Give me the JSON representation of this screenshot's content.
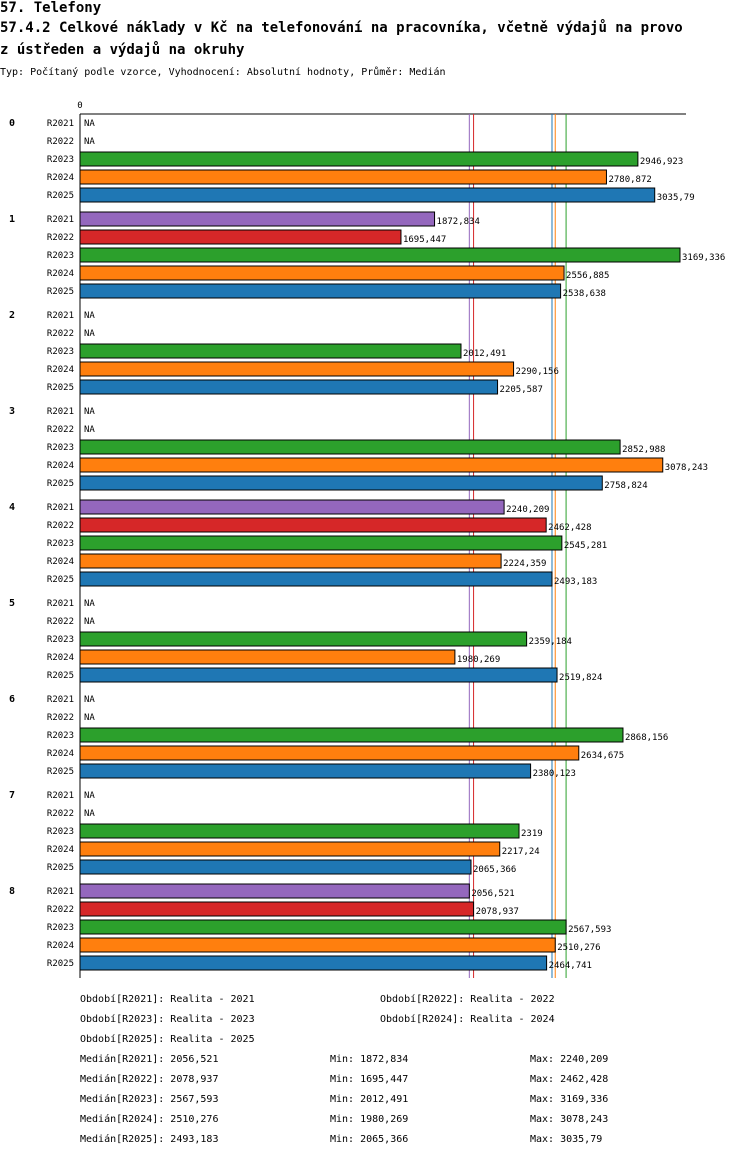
{
  "header": {
    "title": "57. Telefony",
    "subtitle_line1": "57.4.2 Celkové náklady v Kč na telefonování na pracovníka, včetně výdajů na provo",
    "subtitle_line2": "z ústředen a výdajů na okruhy",
    "meta": "Typ: Počítaný podle vzorce, Vyhodnocení: Absolutní hodnoty, Průměr: Medián"
  },
  "chart_data": {
    "type": "bar",
    "orientation": "horizontal",
    "axis_zero_label": "0",
    "xlim": [
      0,
      3169.336
    ],
    "na_label": "NA",
    "series": [
      {
        "name": "R2021",
        "color": "#9467bd"
      },
      {
        "name": "R2022",
        "color": "#d62728"
      },
      {
        "name": "R2023",
        "color": "#2ca02c"
      },
      {
        "name": "R2024",
        "color": "#ff7f0e"
      },
      {
        "name": "R2025",
        "color": "#1f77b4"
      }
    ],
    "groups": [
      {
        "label": "0",
        "values": [
          null,
          null,
          2946.923,
          2780.872,
          3035.79
        ],
        "labels": [
          "NA",
          "NA",
          "2946,923",
          "2780,872",
          "3035,79"
        ]
      },
      {
        "label": "1",
        "values": [
          1872.834,
          1695.447,
          3169.336,
          2556.885,
          2538.638
        ],
        "labels": [
          "1872,834",
          "1695,447",
          "3169,336",
          "2556,885",
          "2538,638"
        ]
      },
      {
        "label": "2",
        "values": [
          null,
          null,
          2012.491,
          2290.156,
          2205.587
        ],
        "labels": [
          "NA",
          "NA",
          "2012,491",
          "2290,156",
          "2205,587"
        ]
      },
      {
        "label": "3",
        "values": [
          null,
          null,
          2852.988,
          3078.243,
          2758.824
        ],
        "labels": [
          "NA",
          "NA",
          "2852,988",
          "3078,243",
          "2758,824"
        ]
      },
      {
        "label": "4",
        "values": [
          2240.209,
          2462.428,
          2545.281,
          2224.359,
          2493.183
        ],
        "labels": [
          "2240,209",
          "2462,428",
          "2545,281",
          "2224,359",
          "2493,183"
        ]
      },
      {
        "label": "5",
        "values": [
          null,
          null,
          2359.184,
          1980.269,
          2519.824
        ],
        "labels": [
          "NA",
          "NA",
          "2359,184",
          "1980,269",
          "2519,824"
        ]
      },
      {
        "label": "6",
        "values": [
          null,
          null,
          2868.156,
          2634.675,
          2380.123
        ],
        "labels": [
          "NA",
          "NA",
          "2868,156",
          "2634,675",
          "2380,123"
        ]
      },
      {
        "label": "7",
        "values": [
          null,
          null,
          2319,
          2217.24,
          2065.366
        ],
        "labels": [
          "NA",
          "NA",
          "2319",
          "2217,24",
          "2065,366"
        ]
      },
      {
        "label": "8",
        "values": [
          2056.521,
          2078.937,
          2567.593,
          2510.276,
          2464.741
        ],
        "labels": [
          "2056,521",
          "2078,937",
          "2567,593",
          "2510,276",
          "2464,741"
        ]
      }
    ],
    "median_lines": [
      {
        "series": "R2021",
        "value": 2056.521,
        "color": "#9467bd"
      },
      {
        "series": "R2022",
        "value": 2078.937,
        "color": "#d62728"
      },
      {
        "series": "R2023",
        "value": 2567.593,
        "color": "#2ca02c"
      },
      {
        "series": "R2024",
        "value": 2510.276,
        "color": "#ff7f0e"
      },
      {
        "series": "R2025",
        "value": 2493.183,
        "color": "#1f77b4"
      }
    ]
  },
  "legend": {
    "periods": [
      "Období[R2021]: Realita - 2021",
      "Období[R2022]: Realita - 2022",
      "Období[R2023]: Realita - 2023",
      "Období[R2024]: Realita - 2024",
      "Období[R2025]: Realita - 2025"
    ],
    "stats": [
      {
        "median": "Medián[R2021]: 2056,521",
        "min": "Min: 1872,834",
        "max": "Max: 2240,209"
      },
      {
        "median": "Medián[R2022]: 2078,937",
        "min": "Min: 1695,447",
        "max": "Max: 2462,428"
      },
      {
        "median": "Medián[R2023]: 2567,593",
        "min": "Min: 2012,491",
        "max": "Max: 3169,336"
      },
      {
        "median": "Medián[R2024]: 2510,276",
        "min": "Min: 1980,269",
        "max": "Max: 3078,243"
      },
      {
        "median": "Medián[R2025]: 2493,183",
        "min": "Min: 2065,366",
        "max": "Max: 3035,79"
      }
    ]
  }
}
